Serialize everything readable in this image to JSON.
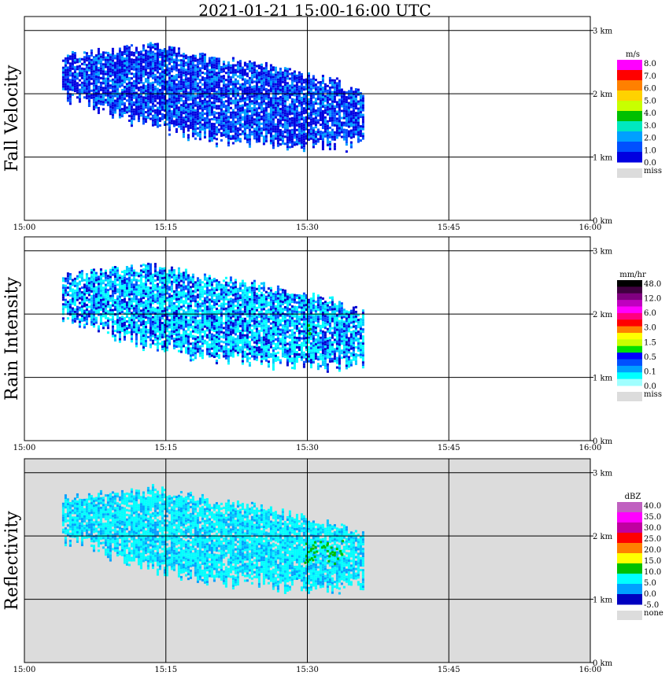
{
  "title": "2021-01-21   15:00-16:00 UTC",
  "time_ticks": [
    "15:00",
    "15:15",
    "15:30",
    "15:45",
    "16:00"
  ],
  "height_ticks": [
    "0 km",
    "1 km",
    "2 km",
    "3 km"
  ],
  "chart_data": [
    {
      "type": "heatmap",
      "ylabel": "Fall Velocity",
      "xlabel": "",
      "x_range": [
        "15:00",
        "16:00"
      ],
      "y_range_km": [
        0,
        3.1
      ],
      "grid": true,
      "legend_placement": "right",
      "background": "#ffffff",
      "colorbar": {
        "unit": "m/s",
        "levels": [
          "8.0",
          "7.0",
          "6.0",
          "5.0",
          "4.0",
          "3.0",
          "2.0",
          "1.0",
          "0.0"
        ],
        "colors": [
          "#ff00ff",
          "#ff0000",
          "#ff8000",
          "#ffd200",
          "#c8ff00",
          "#00c000",
          "#00e8c0",
          "#00a0ff",
          "#0050ff",
          "#0000e0"
        ],
        "missing_label": "miss",
        "missing_color": "#dcdcdc"
      },
      "echo": {
        "start": "15:04",
        "end": "15:36",
        "top_km": [
          2.6,
          2.65,
          2.7,
          2.75,
          2.65,
          2.55,
          2.5,
          2.4,
          2.3,
          2.2,
          2.0
        ],
        "base_km": [
          2.0,
          1.85,
          1.65,
          1.5,
          1.4,
          1.3,
          1.3,
          1.25,
          1.2,
          1.2,
          1.25
        ],
        "colors": [
          "#0000e0",
          "#0050ff",
          "#0000e0",
          "#00a0ff"
        ]
      }
    },
    {
      "type": "heatmap",
      "ylabel": "Rain Intensity",
      "xlabel": "",
      "x_range": [
        "15:00",
        "16:00"
      ],
      "y_range_km": [
        0,
        3.1
      ],
      "grid": true,
      "legend_placement": "right",
      "background": "#ffffff",
      "colorbar": {
        "unit": "mm/hr",
        "levels": [
          "48.0",
          "12.0",
          "6.0",
          "3.0",
          "1.5",
          "0.5",
          "0.1",
          "0.0"
        ],
        "colors": [
          "#000000",
          "#400040",
          "#800080",
          "#c000c0",
          "#ff00ff",
          "#ff0080",
          "#ff0000",
          "#ff8000",
          "#ffff00",
          "#c8ff00",
          "#00e000",
          "#0000ff",
          "#0050ff",
          "#00a0ff",
          "#00ffff",
          "#a0ffff"
        ],
        "missing_label": "miss",
        "missing_color": "#dcdcdc"
      },
      "echo": {
        "start": "15:04",
        "end": "15:36",
        "top_km": [
          2.6,
          2.65,
          2.7,
          2.75,
          2.65,
          2.55,
          2.5,
          2.4,
          2.3,
          2.2,
          2.0
        ],
        "base_km": [
          2.0,
          1.85,
          1.65,
          1.5,
          1.4,
          1.3,
          1.3,
          1.25,
          1.2,
          1.2,
          1.25
        ],
        "colors": [
          "#00ffff",
          "#00c8ff",
          "#00ffff",
          "#0050ff",
          "#0000d0"
        ]
      }
    },
    {
      "type": "heatmap",
      "ylabel": "Reflectivity",
      "xlabel": "",
      "x_range": [
        "15:00",
        "16:00"
      ],
      "y_range_km": [
        0,
        3.1
      ],
      "grid": true,
      "legend_placement": "right",
      "background": "#dcdcdc",
      "colorbar": {
        "unit": "dBZ",
        "levels": [
          "40.0",
          "35.0",
          "30.0",
          "25.0",
          "20.0",
          "15.0",
          "10.0",
          "5.0",
          "0.0",
          "-5.0"
        ],
        "colors": [
          "#c060c0",
          "#ff00ff",
          "#c000a0",
          "#ff0000",
          "#ff8000",
          "#ffff00",
          "#00c000",
          "#00ffff",
          "#00a0ff",
          "#0000c0"
        ],
        "missing_label": "none",
        "missing_color": "#dcdcdc"
      },
      "echo": {
        "start": "15:04",
        "end": "15:36",
        "top_km": [
          2.6,
          2.65,
          2.7,
          2.75,
          2.65,
          2.55,
          2.5,
          2.4,
          2.3,
          2.2,
          2.0
        ],
        "base_km": [
          2.0,
          1.85,
          1.65,
          1.5,
          1.4,
          1.3,
          1.3,
          1.25,
          1.2,
          1.2,
          1.25
        ],
        "colors": [
          "#00ffff",
          "#00c8ff",
          "#00ffff",
          "#00a0ff",
          "#00ffff"
        ]
      }
    }
  ]
}
